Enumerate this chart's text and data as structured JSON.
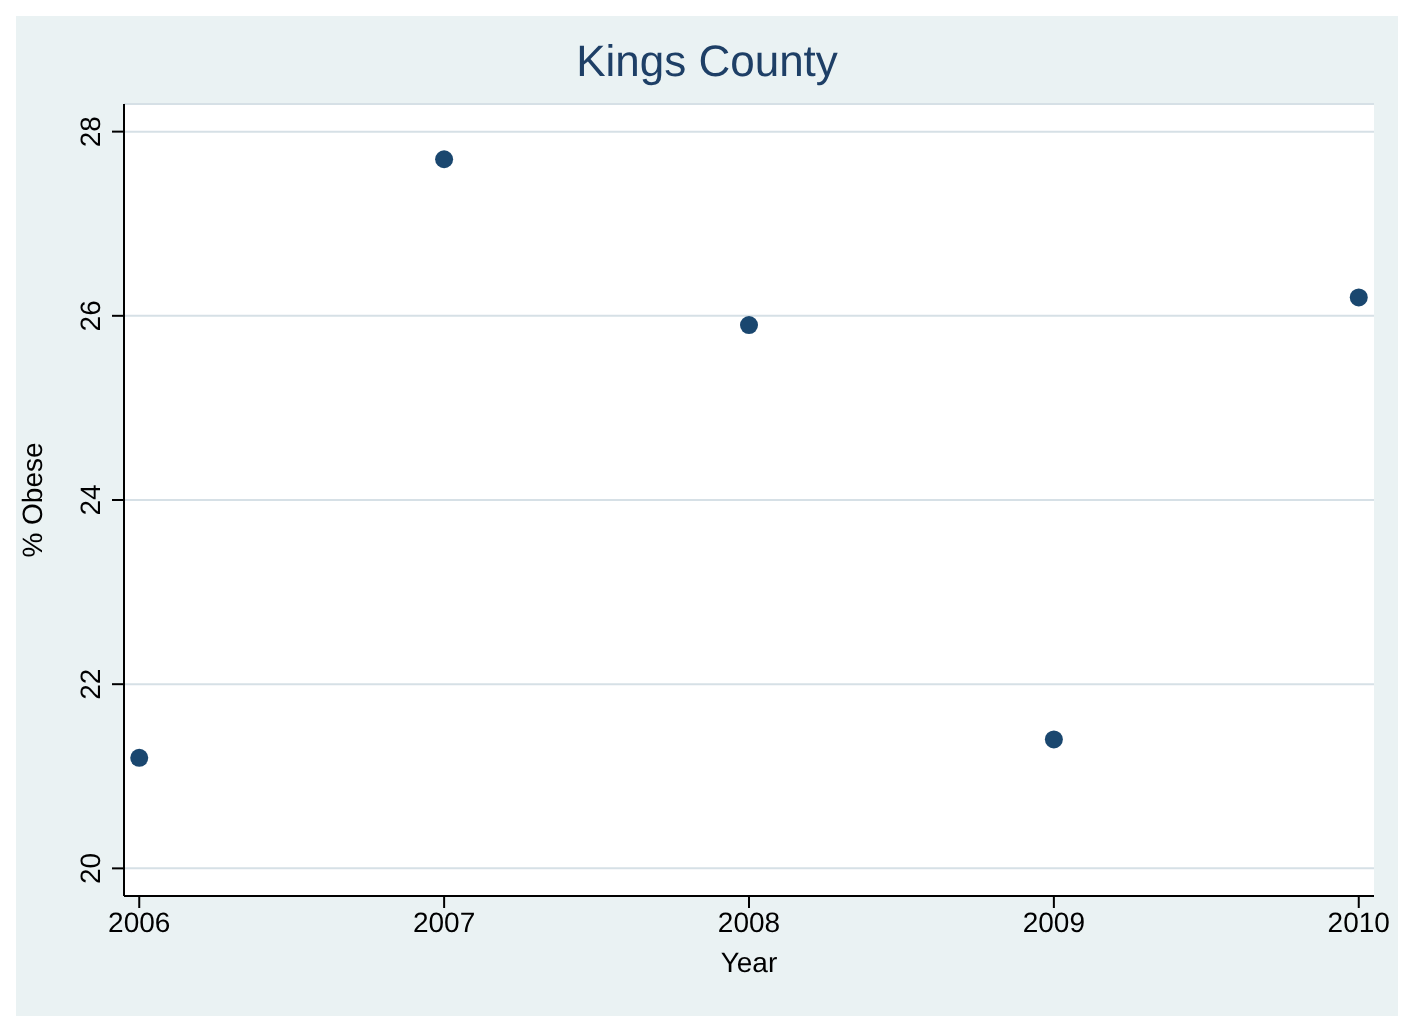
{
  "chart_data": {
    "type": "scatter",
    "title": "Kings County",
    "xlabel": "Year",
    "ylabel": "% Obese",
    "x": [
      2006,
      2007,
      2008,
      2009,
      2010
    ],
    "series": [
      {
        "color": "#1a476f",
        "values": [
          21.2,
          27.7,
          25.9,
          21.4,
          26.2
        ]
      }
    ],
    "xlim": [
      2005.95,
      2010.05
    ],
    "xticks": [
      2006,
      2007,
      2008,
      2009,
      2010
    ],
    "ylim": [
      19.7,
      28.3
    ],
    "yticks": [
      20,
      22,
      24,
      26,
      28
    ],
    "grid": "y",
    "marker": "circle",
    "legend": false
  }
}
